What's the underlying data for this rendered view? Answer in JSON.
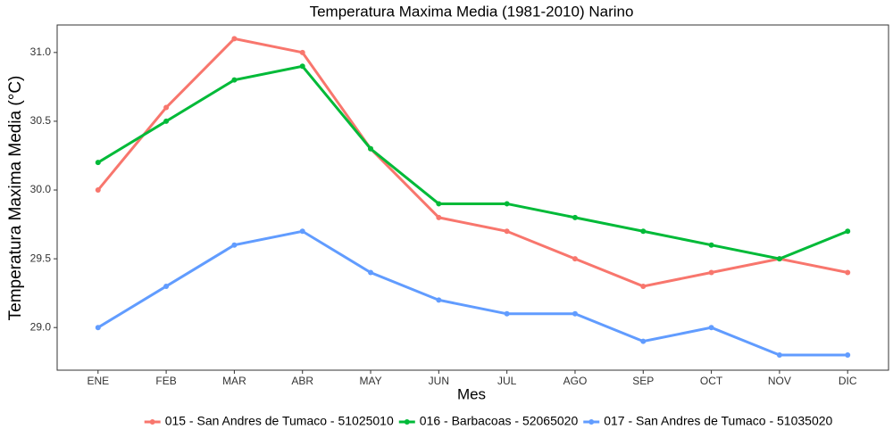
{
  "chart_data": {
    "type": "line",
    "title": "Temperatura Maxima Media (1981-2010)  Narino",
    "x_label": "Mes",
    "y_label": "Temperatura Maxima Media  (°C)",
    "categories": [
      "ENE",
      "FEB",
      "MAR",
      "ABR",
      "MAY",
      "JUN",
      "JUL",
      "AGO",
      "SEP",
      "OCT",
      "NOV",
      "DIC"
    ],
    "series": [
      {
        "name": "015 - San Andres de Tumaco - 51025010",
        "color": "#F8766D",
        "values": [
          30.0,
          30.6,
          31.1,
          31.0,
          30.3,
          29.8,
          29.7,
          29.5,
          29.3,
          29.4,
          29.5,
          29.4
        ]
      },
      {
        "name": "016 - Barbacoas - 52065020",
        "color": "#00BA38",
        "values": [
          30.2,
          30.5,
          30.8,
          30.9,
          30.3,
          29.9,
          29.9,
          29.8,
          29.7,
          29.6,
          29.5,
          29.7
        ]
      },
      {
        "name": "017 - San Andres de Tumaco - 51035020",
        "color": "#619CFF",
        "values": [
          29.0,
          29.3,
          29.6,
          29.7,
          29.4,
          29.2,
          29.1,
          29.1,
          28.9,
          29.0,
          28.8,
          28.8
        ]
      }
    ],
    "ylim": [
      28.69,
      31.2
    ],
    "yticks": [
      {
        "value": 29.0,
        "label": "29.0"
      },
      29.5,
      {
        "value": 30.0,
        "label": "30.0"
      },
      30.5,
      {
        "value": 31.0,
        "label": "31.0"
      }
    ],
    "grid": false,
    "legend": "bottom"
  }
}
